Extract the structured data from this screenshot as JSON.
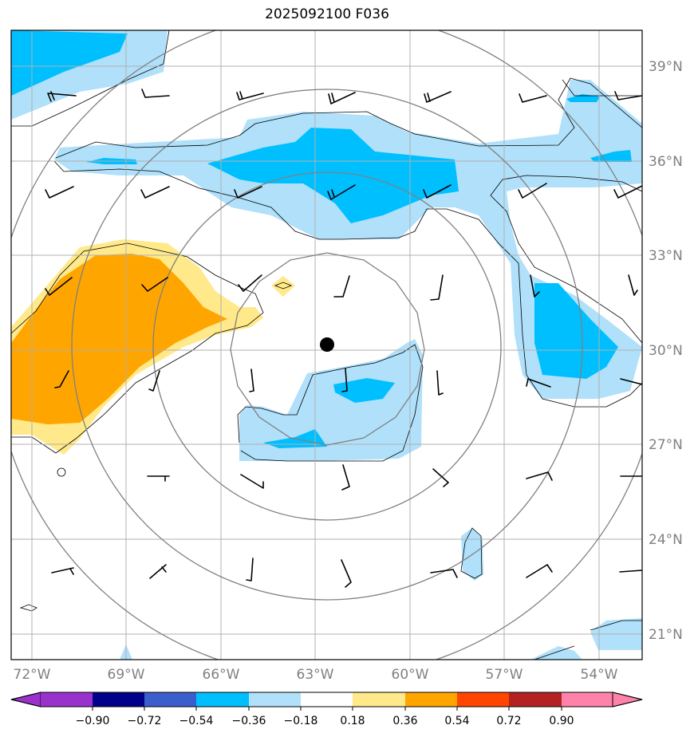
{
  "title": "2025092100 F036",
  "axes": {
    "lon_ticks": [
      "72°W",
      "69°W",
      "66°W",
      "63°W",
      "60°W",
      "57°W",
      "54°W"
    ],
    "lat_ticks": [
      "39°N",
      "36°N",
      "33°N",
      "30°N",
      "27°N",
      "24°N",
      "21°N"
    ]
  },
  "colorbar": {
    "labels": [
      "−0.90",
      "−0.72",
      "−0.54",
      "−0.36",
      "−0.18",
      "0.18",
      "0.36",
      "0.54",
      "0.72",
      "0.90"
    ],
    "colors": [
      "#9932cc",
      "#00008b",
      "#3a5fcd",
      "#00bfff",
      "#b0e0fa",
      "#ffffff",
      "#ffe98a",
      "#ffa500",
      "#ff4500",
      "#b22222",
      "#ff82ab"
    ]
  },
  "colors": {
    "light_blue": "#b0e0fa",
    "mid_blue": "#00bfff",
    "light_yellow": "#ffe98a",
    "orange": "#ffa500",
    "range_ring": "#808080",
    "grid": "#b0b0b0"
  },
  "map": {
    "projection": "lat-lon",
    "lon_range": [
      -72.6,
      -52.6
    ],
    "lat_range": [
      20.2,
      40.2
    ],
    "storm_center": {
      "lon": -62.6,
      "lat": 30.2
    },
    "range_rings": true,
    "wind_barbs": true
  }
}
